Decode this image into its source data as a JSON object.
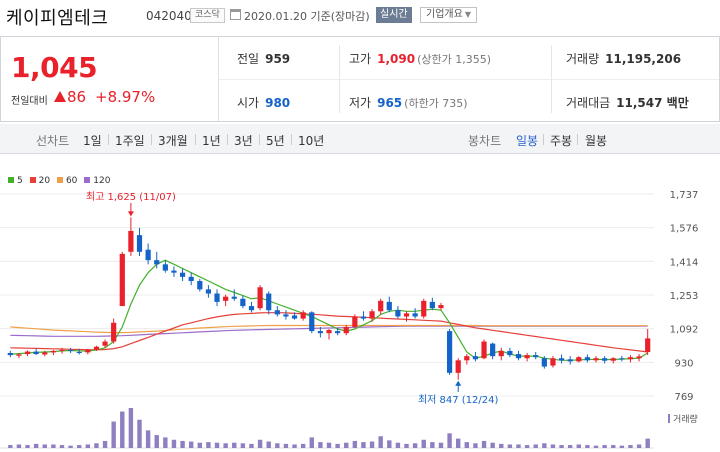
{
  "header": {
    "company_name": "케이피엠테크",
    "code": "042040",
    "market": "코스닥",
    "date_text": "2020.01.20 기준(장마감)",
    "realtime_label": "실시간",
    "company_overview_label": "기업개요"
  },
  "summary": {
    "current_price": "1,045",
    "change_label": "전일대비",
    "change_value": "86",
    "change_rate": "+8.97%",
    "prev_close_label": "전일",
    "prev_close": "959",
    "high_label": "고가",
    "high": "1,090",
    "upper_limit": "(상한가 1,355)",
    "volume_label": "거래량",
    "volume": "11,195,206",
    "open_label": "시가",
    "open": "980",
    "low_label": "저가",
    "low": "965",
    "lower_limit": "(하한가 735)",
    "turnover_label": "거래대금",
    "turnover": "11,547 백만"
  },
  "tabs": {
    "line_chart_label": "선차트",
    "line_periods": [
      "1일",
      "1주일",
      "3개월",
      "1년",
      "3년",
      "5년",
      "10년"
    ],
    "candle_chart_label": "봉차트",
    "candle_periods": [
      "일봉",
      "주봉",
      "월봉"
    ],
    "active_candle_period": "일봉"
  },
  "legend": [
    {
      "label": "5",
      "color": "#43b02a"
    },
    {
      "label": "20",
      "color": "#e5413a"
    },
    {
      "label": "60",
      "color": "#f0a04b"
    },
    {
      "label": "120",
      "color": "#9b6cc9"
    }
  ],
  "colors": {
    "up": "#e8212b",
    "down": "#1463c8",
    "volume": "#8f7fc0"
  },
  "chart_data": {
    "type": "candlestick",
    "y_ticks": [
      "1,737",
      "1,576",
      "1,414",
      "1,253",
      "1,092",
      "930",
      "769"
    ],
    "ylim": [
      769,
      1737
    ],
    "max_annotation": "최고 1,625 (11/07)",
    "min_annotation": "최저 847 (12/24)",
    "volume_label": "거래량",
    "candles": [
      [
        975,
        985,
        955,
        965
      ],
      [
        962,
        975,
        950,
        968
      ],
      [
        970,
        988,
        960,
        982
      ],
      [
        982,
        995,
        965,
        970
      ],
      [
        968,
        985,
        960,
        978
      ],
      [
        978,
        990,
        965,
        985
      ],
      [
        985,
        1000,
        972,
        990
      ],
      [
        990,
        1000,
        975,
        985
      ],
      [
        980,
        995,
        968,
        975
      ],
      [
        978,
        995,
        968,
        990
      ],
      [
        990,
        1010,
        985,
        1005
      ],
      [
        1010,
        1040,
        1000,
        1030
      ],
      [
        1030,
        1140,
        1020,
        1120
      ],
      [
        1200,
        1460,
        1200,
        1450
      ],
      [
        1460,
        1625,
        1440,
        1560
      ],
      [
        1540,
        1575,
        1440,
        1460
      ],
      [
        1470,
        1500,
        1400,
        1420
      ],
      [
        1420,
        1460,
        1380,
        1400
      ],
      [
        1400,
        1420,
        1360,
        1370
      ],
      [
        1370,
        1390,
        1340,
        1360
      ],
      [
        1360,
        1380,
        1320,
        1340
      ],
      [
        1340,
        1360,
        1300,
        1320
      ],
      [
        1320,
        1330,
        1270,
        1280
      ],
      [
        1280,
        1300,
        1240,
        1260
      ],
      [
        1260,
        1280,
        1200,
        1220
      ],
      [
        1225,
        1255,
        1200,
        1245
      ],
      [
        1245,
        1280,
        1225,
        1235
      ],
      [
        1235,
        1250,
        1190,
        1200
      ],
      [
        1200,
        1220,
        1170,
        1180
      ],
      [
        1190,
        1300,
        1180,
        1290
      ],
      [
        1260,
        1270,
        1160,
        1180
      ],
      [
        1180,
        1200,
        1150,
        1160
      ],
      [
        1160,
        1180,
        1135,
        1150
      ],
      [
        1155,
        1170,
        1135,
        1140
      ],
      [
        1140,
        1180,
        1130,
        1170
      ],
      [
        1170,
        1175,
        1070,
        1080
      ],
      [
        1080,
        1100,
        1050,
        1070
      ],
      [
        1070,
        1090,
        1040,
        1085
      ],
      [
        1080,
        1095,
        1060,
        1070
      ],
      [
        1070,
        1110,
        1060,
        1100
      ],
      [
        1100,
        1160,
        1095,
        1150
      ],
      [
        1150,
        1175,
        1130,
        1140
      ],
      [
        1140,
        1185,
        1125,
        1175
      ],
      [
        1175,
        1235,
        1160,
        1225
      ],
      [
        1220,
        1245,
        1170,
        1180
      ],
      [
        1180,
        1200,
        1140,
        1150
      ],
      [
        1150,
        1175,
        1125,
        1165
      ],
      [
        1165,
        1190,
        1140,
        1150
      ],
      [
        1150,
        1235,
        1140,
        1225
      ],
      [
        1220,
        1240,
        1180,
        1190
      ],
      [
        1190,
        1215,
        1180,
        1205
      ],
      [
        1080,
        1090,
        870,
        880
      ],
      [
        880,
        950,
        847,
        940
      ],
      [
        940,
        970,
        920,
        960
      ],
      [
        960,
        980,
        935,
        945
      ],
      [
        950,
        1040,
        945,
        1030
      ],
      [
        1020,
        1025,
        945,
        960
      ],
      [
        960,
        1000,
        940,
        985
      ],
      [
        985,
        1000,
        955,
        965
      ],
      [
        970,
        985,
        940,
        950
      ],
      [
        950,
        975,
        935,
        965
      ],
      [
        965,
        980,
        945,
        955
      ],
      [
        950,
        960,
        900,
        910
      ],
      [
        915,
        960,
        905,
        950
      ],
      [
        950,
        968,
        925,
        940
      ],
      [
        945,
        960,
        920,
        935
      ],
      [
        935,
        960,
        930,
        955
      ],
      [
        955,
        968,
        930,
        940
      ],
      [
        940,
        960,
        930,
        950
      ],
      [
        950,
        960,
        925,
        938
      ],
      [
        938,
        955,
        925,
        950
      ],
      [
        950,
        962,
        935,
        945
      ],
      [
        945,
        965,
        930,
        955
      ],
      [
        950,
        970,
        935,
        959
      ],
      [
        980,
        1090,
        965,
        1045
      ]
    ],
    "ma5": [
      970,
      972,
      975,
      978,
      980,
      982,
      985,
      987,
      985,
      984,
      990,
      1000,
      1030,
      1100,
      1210,
      1300,
      1360,
      1400,
      1420,
      1400,
      1380,
      1360,
      1340,
      1320,
      1300,
      1280,
      1265,
      1250,
      1235,
      1240,
      1225,
      1210,
      1195,
      1180,
      1165,
      1150,
      1130,
      1110,
      1090,
      1080,
      1090,
      1110,
      1130,
      1160,
      1175,
      1180,
      1175,
      1175,
      1180,
      1185,
      1180,
      1120,
      1050,
      980,
      950,
      960,
      975,
      985,
      970,
      960,
      960,
      960,
      950,
      945,
      940,
      940,
      942,
      944,
      945,
      944,
      944,
      946,
      948,
      950,
      975
    ],
    "ma20": [
      1000,
      999,
      998,
      997,
      996,
      995,
      994,
      993,
      992,
      991,
      990,
      992,
      996,
      1005,
      1020,
      1035,
      1050,
      1065,
      1080,
      1095,
      1110,
      1120,
      1130,
      1140,
      1148,
      1155,
      1160,
      1163,
      1165,
      1167,
      1168,
      1168,
      1167,
      1165,
      1163,
      1161,
      1158,
      1155,
      1152,
      1150,
      1148,
      1146,
      1144,
      1142,
      1140,
      1138,
      1136,
      1134,
      1132,
      1130,
      1128,
      1120,
      1112,
      1104,
      1096,
      1090,
      1084,
      1078,
      1072,
      1066,
      1060,
      1054,
      1048,
      1042,
      1036,
      1030,
      1024,
      1018,
      1012,
      1006,
      1000,
      995,
      990,
      985,
      980
    ],
    "ma60": [
      1100,
      1097,
      1094,
      1091,
      1088,
      1085,
      1083,
      1081,
      1079,
      1077,
      1075,
      1074,
      1073,
      1073,
      1074,
      1076,
      1078,
      1080,
      1083,
      1086,
      1089,
      1092,
      1095,
      1097,
      1099,
      1101,
      1103,
      1104,
      1105,
      1106,
      1107,
      1107,
      1107,
      1107,
      1107,
      1107,
      1107,
      1107,
      1107,
      1107,
      1107,
      1107,
      1107,
      1107,
      1107,
      1107,
      1107,
      1107,
      1107,
      1107,
      1107,
      1107,
      1107,
      1107,
      1107,
      1106,
      1106,
      1106,
      1106,
      1106,
      1106,
      1106,
      1106,
      1106,
      1106,
      1106,
      1106,
      1106,
      1106,
      1106,
      1106,
      1106,
      1106,
      1106,
      1106
    ],
    "ma120": [
      1060,
      1059,
      1058,
      1057,
      1056,
      1055,
      1055,
      1055,
      1055,
      1055,
      1055,
      1056,
      1057,
      1058,
      1060,
      1062,
      1064,
      1066,
      1068,
      1070,
      1072,
      1074,
      1076,
      1078,
      1080,
      1082,
      1084,
      1085,
      1086,
      1087,
      1088,
      1089,
      1090,
      1091,
      1092,
      1093,
      1094,
      1095,
      1096,
      1097,
      1098,
      1099,
      1100,
      1101,
      1102,
      1103,
      1104,
      1104,
      1104,
      1104,
      1104,
      1104,
      1104,
      1104,
      1104,
      1104,
      1104,
      1104,
      1104,
      1104,
      1104,
      1104,
      1104,
      1104,
      1104,
      1104,
      1104,
      1104,
      1104,
      1104,
      1104,
      1104,
      1104,
      1104,
      1104
    ],
    "volume": [
      5,
      6,
      5,
      7,
      6,
      6,
      5,
      4,
      5,
      6,
      8,
      12,
      45,
      62,
      68,
      48,
      30,
      22,
      18,
      14,
      12,
      11,
      9,
      10,
      9,
      8,
      9,
      8,
      7,
      14,
      11,
      8,
      7,
      6,
      7,
      18,
      10,
      9,
      7,
      9,
      12,
      10,
      11,
      20,
      13,
      9,
      7,
      8,
      14,
      10,
      9,
      25,
      16,
      10,
      8,
      12,
      9,
      7,
      6,
      6,
      5,
      6,
      8,
      6,
      5,
      5,
      6,
      5,
      4,
      5,
      5,
      4,
      5,
      6,
      16
    ]
  }
}
